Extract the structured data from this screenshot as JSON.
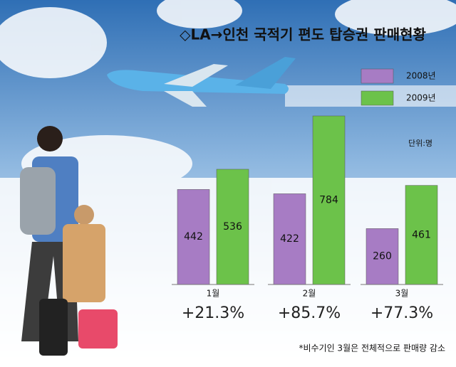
{
  "chart_data": {
    "type": "bar",
    "title": "◇LA→인천 국적기 편도 탑승권 판매현황",
    "unit": "단위:명",
    "categories": [
      "1월",
      "2월",
      "3월"
    ],
    "series": [
      {
        "name": "2008년",
        "color": "#a77cc4",
        "values": [
          442,
          422,
          260
        ]
      },
      {
        "name": "2009년",
        "color": "#6cc24a",
        "values": [
          536,
          784,
          461
        ]
      }
    ],
    "changes": [
      "+21.3%",
      "+85.7%",
      "+77.3%"
    ],
    "note": "*비수기인 3월은 전체적으로 판매량 감소"
  }
}
